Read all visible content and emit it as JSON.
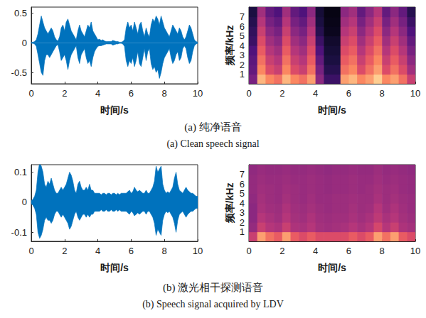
{
  "chart_data": [
    {
      "type": "envelope",
      "x_label": "时间/s",
      "color": "#0072bd",
      "xlim": [
        0,
        10
      ],
      "xticks": [
        0,
        2,
        4,
        6,
        8,
        10
      ],
      "ylim": [
        -0.69,
        0.6
      ],
      "yticks": [
        -0.5,
        0,
        0.5
      ],
      "x": [
        0,
        0.1,
        0.2,
        0.3,
        0.4,
        0.5,
        0.6,
        0.7,
        0.8,
        0.9,
        1,
        1.1,
        1.2,
        1.3,
        1.4,
        1.5,
        1.6,
        1.7,
        1.8,
        1.9,
        2,
        2.1,
        2.2,
        2.3,
        2.4,
        2.5,
        2.6,
        2.7,
        2.8,
        2.9,
        3,
        3.1,
        3.2,
        3.3,
        3.4,
        3.5,
        3.6,
        3.7,
        3.8,
        3.9,
        4,
        4.1,
        4.2,
        4.3,
        4.4,
        4.5,
        4.6,
        4.7,
        4.8,
        4.9,
        5,
        5.1,
        5.2,
        5.3,
        5.4,
        5.5,
        5.6,
        5.7,
        5.8,
        5.9,
        6,
        6.1,
        6.2,
        6.3,
        6.4,
        6.5,
        6.6,
        6.7,
        6.8,
        6.9,
        7,
        7.1,
        7.2,
        7.3,
        7.4,
        7.5,
        7.6,
        7.7,
        7.8,
        7.9,
        8,
        8.1,
        8.2,
        8.3,
        8.4,
        8.5,
        8.6,
        8.7,
        8.8,
        8.9,
        9,
        9.1,
        9.2,
        9.3,
        9.4,
        9.5,
        9.6,
        9.7,
        9.8,
        9.9,
        10
      ],
      "upper": [
        0.01,
        0.01,
        0.02,
        0.05,
        0.15,
        0.3,
        0.45,
        0.35,
        0.25,
        0.2,
        0.15,
        0.2,
        0.25,
        0.2,
        0.1,
        0.05,
        0.03,
        0.1,
        0.25,
        0.3,
        0.2,
        0.35,
        0.4,
        0.3,
        0.2,
        0.15,
        0.1,
        0.05,
        0.2,
        0.3,
        0.2,
        0.15,
        0.1,
        0.2,
        0.3,
        0.25,
        0.35,
        0.2,
        0.15,
        0.1,
        0.05,
        0.06,
        0.04,
        0.05,
        0.03,
        0.02,
        0.02,
        0.02,
        0.02,
        0.04,
        0.03,
        0.02,
        0.02,
        0.01,
        0.01,
        0.02,
        0.05,
        0.25,
        0.35,
        0.25,
        0.3,
        0.2,
        0.35,
        0.25,
        0.15,
        0.3,
        0.35,
        0.2,
        0.1,
        0.25,
        0.15,
        0.1,
        0.3,
        0.4,
        0.35,
        0.45,
        0.4,
        0.3,
        0.45,
        0.35,
        0.25,
        0.2,
        0.15,
        0.1,
        0.2,
        0.3,
        0.25,
        0.2,
        0.15,
        0.25,
        0.2,
        0.1,
        0.05,
        0.1,
        0.2,
        0.3,
        0.25,
        0.15,
        0.05,
        0.02,
        0.01
      ],
      "lower": [
        -0.01,
        -0.01,
        -0.02,
        -0.06,
        -0.2,
        -0.35,
        -0.5,
        -0.55,
        -0.3,
        -0.2,
        -0.2,
        -0.25,
        -0.2,
        -0.15,
        -0.1,
        -0.05,
        -0.03,
        -0.15,
        -0.3,
        -0.25,
        -0.2,
        -0.3,
        -0.45,
        -0.3,
        -0.2,
        -0.15,
        -0.1,
        -0.05,
        -0.25,
        -0.35,
        -0.2,
        -0.15,
        -0.1,
        -0.25,
        -0.35,
        -0.3,
        -0.4,
        -0.25,
        -0.15,
        -0.1,
        -0.06,
        -0.05,
        -0.05,
        -0.04,
        -0.03,
        -0.02,
        -0.02,
        -0.02,
        -0.02,
        -0.04,
        -0.03,
        -0.02,
        -0.02,
        -0.01,
        -0.01,
        -0.02,
        -0.06,
        -0.3,
        -0.4,
        -0.3,
        -0.35,
        -0.25,
        -0.4,
        -0.3,
        -0.15,
        -0.35,
        -0.4,
        -0.25,
        -0.1,
        -0.3,
        -0.15,
        -0.1,
        -0.35,
        -0.45,
        -0.4,
        -0.5,
        -0.45,
        -0.6,
        -0.5,
        -0.35,
        -0.25,
        -0.2,
        -0.15,
        -0.1,
        -0.25,
        -0.35,
        -0.3,
        -0.2,
        -0.15,
        -0.3,
        -0.25,
        -0.1,
        -0.05,
        -0.1,
        -0.25,
        -0.35,
        -0.3,
        -0.15,
        -0.05,
        -0.02,
        -0.01
      ]
    },
    {
      "type": "heatmap",
      "x_label": "时间/s",
      "y_label": "频率/kHz",
      "xlim": [
        0,
        10
      ],
      "xticks": [
        0,
        2,
        4,
        6,
        8,
        10
      ],
      "ylim": [
        0,
        8
      ],
      "yticks": [
        1,
        2,
        3,
        4,
        5,
        6,
        7
      ],
      "zlim": [
        0,
        1
      ],
      "x_edges": [
        0,
        0.5,
        1,
        1.5,
        2,
        2.5,
        3,
        3.5,
        4,
        4.5,
        5,
        5.5,
        6,
        6.5,
        7,
        7.5,
        8,
        8.5,
        9,
        9.5,
        10
      ],
      "y_edges": [
        0,
        1,
        2,
        3,
        4,
        5,
        6,
        7,
        8
      ],
      "cells": [
        [
          0.35,
          0.85,
          0.75,
          0.7,
          0.85,
          0.75,
          0.7,
          0.8,
          0.4,
          0.2,
          0.2,
          0.8,
          0.85,
          0.75,
          0.8,
          0.9,
          0.75,
          0.8,
          0.7,
          0.55
        ],
        [
          0.3,
          0.75,
          0.6,
          0.55,
          0.75,
          0.6,
          0.55,
          0.7,
          0.35,
          0.15,
          0.15,
          0.7,
          0.75,
          0.6,
          0.7,
          0.8,
          0.6,
          0.7,
          0.6,
          0.45
        ],
        [
          0.28,
          0.7,
          0.55,
          0.5,
          0.7,
          0.55,
          0.5,
          0.65,
          0.3,
          0.12,
          0.12,
          0.65,
          0.7,
          0.55,
          0.65,
          0.75,
          0.55,
          0.65,
          0.55,
          0.4
        ],
        [
          0.25,
          0.65,
          0.5,
          0.45,
          0.65,
          0.5,
          0.45,
          0.6,
          0.25,
          0.1,
          0.1,
          0.6,
          0.65,
          0.5,
          0.6,
          0.7,
          0.5,
          0.6,
          0.5,
          0.35
        ],
        [
          0.2,
          0.6,
          0.45,
          0.4,
          0.6,
          0.45,
          0.4,
          0.55,
          0.2,
          0.08,
          0.08,
          0.55,
          0.6,
          0.45,
          0.55,
          0.65,
          0.45,
          0.55,
          0.45,
          0.3
        ],
        [
          0.18,
          0.55,
          0.4,
          0.35,
          0.55,
          0.4,
          0.35,
          0.5,
          0.15,
          0.05,
          0.05,
          0.5,
          0.55,
          0.4,
          0.5,
          0.6,
          0.4,
          0.5,
          0.4,
          0.25
        ],
        [
          0.15,
          0.5,
          0.35,
          0.3,
          0.5,
          0.35,
          0.3,
          0.45,
          0.12,
          0.04,
          0.04,
          0.45,
          0.5,
          0.35,
          0.45,
          0.55,
          0.35,
          0.45,
          0.35,
          0.2
        ],
        [
          0.12,
          0.45,
          0.3,
          0.25,
          0.45,
          0.3,
          0.25,
          0.4,
          0.1,
          0.03,
          0.03,
          0.4,
          0.45,
          0.3,
          0.4,
          0.5,
          0.3,
          0.4,
          0.3,
          0.15
        ]
      ]
    },
    {
      "type": "envelope",
      "x_label": "时间/s",
      "color": "#0072bd",
      "xlim": [
        0,
        10
      ],
      "xticks": [
        0,
        2,
        4,
        6,
        8,
        10
      ],
      "ylim": [
        -0.13,
        0.125
      ],
      "yticks": [
        -0.1,
        0,
        0.1
      ],
      "x": [
        0,
        0.1,
        0.2,
        0.3,
        0.4,
        0.5,
        0.6,
        0.7,
        0.8,
        0.9,
        1,
        1.1,
        1.2,
        1.3,
        1.4,
        1.5,
        1.6,
        1.7,
        1.8,
        1.9,
        2,
        2.1,
        2.2,
        2.3,
        2.4,
        2.5,
        2.6,
        2.7,
        2.8,
        2.9,
        3,
        3.1,
        3.2,
        3.3,
        3.4,
        3.5,
        3.6,
        3.7,
        3.8,
        3.9,
        4,
        4.1,
        4.2,
        4.3,
        4.4,
        4.5,
        4.6,
        4.7,
        4.8,
        4.9,
        5,
        5.1,
        5.2,
        5.3,
        5.4,
        5.5,
        5.6,
        5.7,
        5.8,
        5.9,
        6,
        6.1,
        6.2,
        6.3,
        6.4,
        6.5,
        6.6,
        6.7,
        6.8,
        6.9,
        7,
        7.1,
        7.2,
        7.3,
        7.4,
        7.5,
        7.6,
        7.7,
        7.8,
        7.9,
        8,
        8.1,
        8.2,
        8.3,
        8.4,
        8.5,
        8.6,
        8.7,
        8.8,
        8.9,
        9,
        9.1,
        9.2,
        9.3,
        9.4,
        9.5,
        9.6,
        9.7,
        9.8,
        9.9,
        10
      ],
      "upper": [
        0.005,
        0.01,
        0.02,
        0.04,
        0.1,
        0.13,
        0.12,
        0.1,
        0.06,
        0.05,
        0.07,
        0.06,
        0.08,
        0.06,
        0.04,
        0.03,
        0.03,
        0.04,
        0.05,
        0.04,
        0.05,
        0.06,
        0.08,
        0.1,
        0.09,
        0.07,
        0.04,
        0.03,
        0.06,
        0.07,
        0.05,
        0.04,
        0.04,
        0.05,
        0.04,
        0.06,
        0.04,
        0.04,
        0.03,
        0.03,
        0.03,
        0.03,
        0.025,
        0.03,
        0.03,
        0.025,
        0.03,
        0.03,
        0.025,
        0.03,
        0.03,
        0.025,
        0.03,
        0.025,
        0.03,
        0.03,
        0.03,
        0.03,
        0.035,
        0.04,
        0.03,
        0.035,
        0.05,
        0.04,
        0.035,
        0.04,
        0.035,
        0.03,
        0.03,
        0.04,
        0.03,
        0.03,
        0.04,
        0.05,
        0.07,
        0.12,
        0.1,
        0.11,
        0.12,
        0.06,
        0.04,
        0.03,
        0.035,
        0.03,
        0.04,
        0.05,
        0.08,
        0.1,
        0.06,
        0.04,
        0.035,
        0.03,
        0.04,
        0.05,
        0.04,
        0.035,
        0.03,
        0.03,
        0.025,
        0.02,
        0.02
      ],
      "lower": [
        -0.005,
        -0.01,
        -0.02,
        -0.04,
        -0.1,
        -0.12,
        -0.11,
        -0.09,
        -0.06,
        -0.05,
        -0.06,
        -0.06,
        -0.07,
        -0.06,
        -0.04,
        -0.03,
        -0.03,
        -0.04,
        -0.05,
        -0.04,
        -0.05,
        -0.06,
        -0.07,
        -0.09,
        -0.08,
        -0.06,
        -0.04,
        -0.03,
        -0.05,
        -0.06,
        -0.05,
        -0.04,
        -0.04,
        -0.05,
        -0.04,
        -0.05,
        -0.04,
        -0.04,
        -0.03,
        -0.03,
        -0.03,
        -0.03,
        -0.025,
        -0.03,
        -0.03,
        -0.025,
        -0.03,
        -0.03,
        -0.025,
        -0.03,
        -0.03,
        -0.025,
        -0.03,
        -0.025,
        -0.03,
        -0.03,
        -0.03,
        -0.03,
        -0.035,
        -0.04,
        -0.03,
        -0.035,
        -0.045,
        -0.04,
        -0.035,
        -0.04,
        -0.035,
        -0.03,
        -0.03,
        -0.04,
        -0.03,
        -0.03,
        -0.04,
        -0.05,
        -0.07,
        -0.11,
        -0.09,
        -0.1,
        -0.11,
        -0.06,
        -0.04,
        -0.03,
        -0.035,
        -0.03,
        -0.04,
        -0.05,
        -0.07,
        -0.1,
        -0.06,
        -0.04,
        -0.035,
        -0.03,
        -0.04,
        -0.05,
        -0.04,
        -0.035,
        -0.03,
        -0.03,
        -0.025,
        -0.02,
        -0.02
      ]
    },
    {
      "type": "heatmap",
      "x_label": "时间/s",
      "y_label": "频率/kHz",
      "xlim": [
        0,
        10
      ],
      "xticks": [
        0,
        2,
        4,
        6,
        8,
        10
      ],
      "ylim": [
        0,
        8
      ],
      "yticks": [
        1,
        2,
        3,
        4,
        5,
        6,
        7
      ],
      "zlim": [
        0,
        1
      ],
      "x_edges": [
        0,
        0.5,
        1,
        1.5,
        2,
        2.5,
        3,
        3.5,
        4,
        4.5,
        5,
        5.5,
        6,
        6.5,
        7,
        7.5,
        8,
        8.5,
        9,
        9.5,
        10
      ],
      "y_edges": [
        0,
        1,
        2,
        3,
        4,
        5,
        6,
        7,
        8
      ],
      "cells": [
        [
          0.55,
          0.8,
          0.7,
          0.65,
          0.8,
          0.65,
          0.6,
          0.65,
          0.6,
          0.6,
          0.6,
          0.6,
          0.65,
          0.6,
          0.65,
          0.8,
          0.7,
          0.8,
          0.65,
          0.6
        ],
        [
          0.42,
          0.55,
          0.5,
          0.48,
          0.55,
          0.48,
          0.47,
          0.5,
          0.46,
          0.45,
          0.46,
          0.47,
          0.5,
          0.47,
          0.5,
          0.58,
          0.5,
          0.55,
          0.48,
          0.46
        ],
        [
          0.4,
          0.5,
          0.47,
          0.45,
          0.5,
          0.46,
          0.45,
          0.48,
          0.45,
          0.44,
          0.45,
          0.45,
          0.47,
          0.45,
          0.47,
          0.52,
          0.47,
          0.5,
          0.46,
          0.44
        ],
        [
          0.4,
          0.47,
          0.45,
          0.44,
          0.48,
          0.45,
          0.44,
          0.46,
          0.44,
          0.43,
          0.44,
          0.44,
          0.46,
          0.44,
          0.45,
          0.5,
          0.45,
          0.48,
          0.45,
          0.43
        ],
        [
          0.41,
          0.46,
          0.44,
          0.43,
          0.46,
          0.44,
          0.43,
          0.45,
          0.43,
          0.43,
          0.44,
          0.44,
          0.45,
          0.44,
          0.44,
          0.47,
          0.44,
          0.46,
          0.44,
          0.43
        ],
        [
          0.42,
          0.45,
          0.44,
          0.43,
          0.45,
          0.44,
          0.43,
          0.44,
          0.43,
          0.42,
          0.43,
          0.43,
          0.44,
          0.43,
          0.44,
          0.46,
          0.44,
          0.45,
          0.43,
          0.42
        ],
        [
          0.42,
          0.44,
          0.43,
          0.43,
          0.44,
          0.43,
          0.43,
          0.44,
          0.43,
          0.42,
          0.43,
          0.43,
          0.44,
          0.43,
          0.43,
          0.45,
          0.43,
          0.44,
          0.43,
          0.42
        ],
        [
          0.41,
          0.43,
          0.42,
          0.42,
          0.43,
          0.42,
          0.42,
          0.43,
          0.42,
          0.41,
          0.42,
          0.42,
          0.43,
          0.42,
          0.42,
          0.44,
          0.42,
          0.43,
          0.42,
          0.41
        ]
      ]
    }
  ],
  "captions": [
    {
      "zh": "(a) 纯净语音",
      "en": "(a) Clean speech signal"
    },
    {
      "zh": "(b) 激光相干探测语音",
      "en": "(b) Speech signal acquired by LDV"
    }
  ]
}
